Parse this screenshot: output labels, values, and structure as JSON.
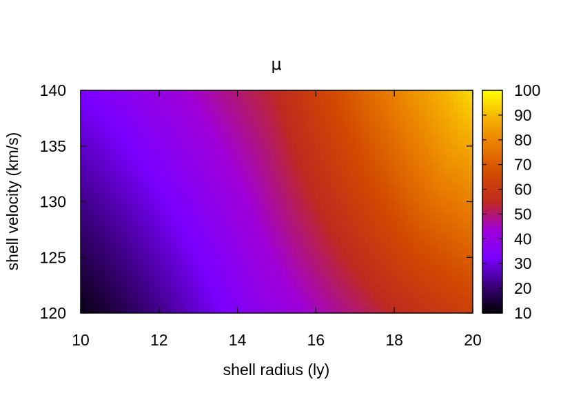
{
  "chart_data": {
    "type": "heatmap",
    "title": "μ",
    "xlabel": "shell radius (ly)",
    "ylabel": "shell velocity (km/s)",
    "xlim": [
      10,
      20
    ],
    "ylim": [
      120,
      140
    ],
    "x_ticks": [
      "10",
      "12",
      "14",
      "16",
      "18",
      "20"
    ],
    "y_ticks": [
      "120",
      "125",
      "130",
      "135",
      "140"
    ],
    "colorbar": {
      "range": [
        10,
        100
      ],
      "ticks": [
        "10",
        "20",
        "30",
        "40",
        "50",
        "60",
        "70",
        "80",
        "90",
        "100"
      ],
      "palette": [
        "#000000",
        "#3b007c",
        "#7a00ff",
        "#a000d8",
        "#bf2a20",
        "#d14a00",
        "#e87a00",
        "#f5b000",
        "#ffff00"
      ]
    },
    "corner_values": {
      "x10_y120": 12,
      "x10_y140": 33,
      "x14_y120": 35,
      "x15_y140": 55,
      "x18_y120": 55,
      "x20_y120": 63,
      "x20_y140": 95
    }
  }
}
